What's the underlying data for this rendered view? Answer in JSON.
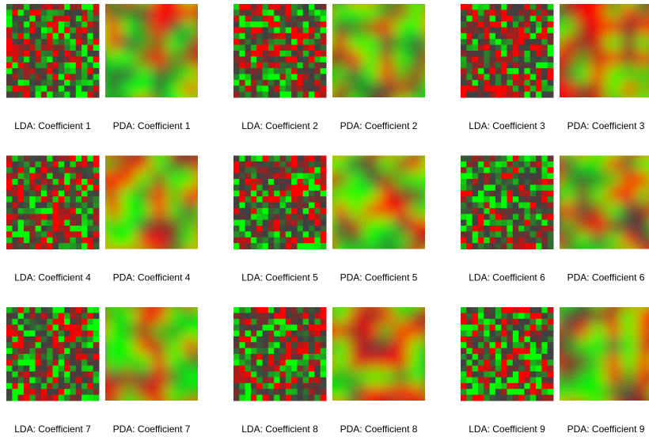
{
  "panels": [
    {
      "lda_label": "LDA: Coefficient 1",
      "pda_label": "PDA: Coefficient 1"
    },
    {
      "lda_label": "LDA: Coefficient 2",
      "pda_label": "PDA: Coefficient 2"
    },
    {
      "lda_label": "LDA: Coefficient 3",
      "pda_label": "PDA: Coefficient 3"
    },
    {
      "lda_label": "LDA: Coefficient 4",
      "pda_label": "PDA: Coefficient 4"
    },
    {
      "lda_label": "LDA: Coefficient 5",
      "pda_label": "PDA: Coefficient 5"
    },
    {
      "lda_label": "LDA: Coefficient 6",
      "pda_label": "PDA: Coefficient 6"
    },
    {
      "lda_label": "LDA: Coefficient 7",
      "pda_label": "PDA: Coefficient 7"
    },
    {
      "lda_label": "LDA: Coefficient 8",
      "pda_label": "PDA: Coefficient 8"
    },
    {
      "lda_label": "LDA: Coefficient 9",
      "pda_label": "PDA: Coefficient 9"
    }
  ]
}
